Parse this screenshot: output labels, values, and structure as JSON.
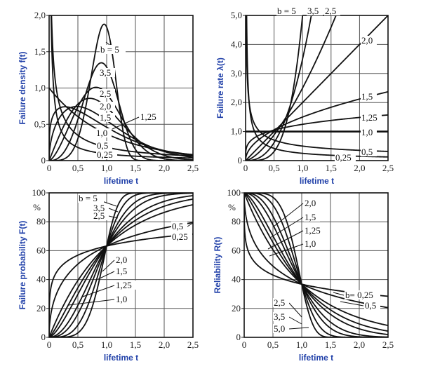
{
  "chart_data": [
    {
      "type": "line",
      "function": "weibull-density",
      "ylabel": "Failure density f(t)",
      "xlabel": "lifetime t",
      "xlim": [
        0,
        2.5
      ],
      "ylim": [
        0,
        2.0
      ],
      "xticks": [
        "0",
        "0,5",
        "1,0",
        "1,5",
        "2,0",
        "2,5"
      ],
      "yticks": [
        "0",
        "0,5",
        "1,0",
        "1,5",
        "2,0"
      ],
      "unit": "",
      "grid": true,
      "series": [
        {
          "b": 0.25,
          "label": "0,25"
        },
        {
          "b": 0.5,
          "label": "0,5"
        },
        {
          "b": 1.0,
          "label": "1,0"
        },
        {
          "b": 1.25,
          "label": "1,25"
        },
        {
          "b": 1.5,
          "label": "1,5"
        },
        {
          "b": 2.0,
          "label": "2,0"
        },
        {
          "b": 2.5,
          "label": "2,5"
        },
        {
          "b": 3.5,
          "label": "3,5"
        },
        {
          "b": 5,
          "label": "b = 5"
        }
      ]
    },
    {
      "type": "line",
      "function": "weibull-hazard",
      "ylabel": "Failure rate λ(t)",
      "xlabel": "lifetime t",
      "xlim": [
        0,
        2.5
      ],
      "ylim": [
        0,
        5.0
      ],
      "xticks": [
        "0",
        "0,5",
        "1,0",
        "1,5",
        "2,0",
        "2,5"
      ],
      "yticks": [
        "0",
        "1,0",
        "2,0",
        "3,0",
        "4,0",
        "5,0"
      ],
      "unit": "",
      "grid": true,
      "series": [
        {
          "b": 0.25,
          "label": "0,25"
        },
        {
          "b": 0.5,
          "label": "0,5"
        },
        {
          "b": 1.0,
          "label": "1,0"
        },
        {
          "b": 1.25,
          "label": "1,25"
        },
        {
          "b": 1.5,
          "label": "1,5"
        },
        {
          "b": 2.0,
          "label": "2,0"
        },
        {
          "b": 2.5,
          "label": "2,5"
        },
        {
          "b": 3.5,
          "label": "3,5"
        },
        {
          "b": 5,
          "label": "b = 5"
        }
      ]
    },
    {
      "type": "line",
      "function": "weibull-cdf-percent",
      "ylabel": "Failure probability F(t)",
      "xlabel": "lifetime t",
      "xlim": [
        0,
        2.5
      ],
      "ylim": [
        0,
        100
      ],
      "xticks": [
        "0",
        "0,5",
        "1,0",
        "1,5",
        "2,0",
        "2,5"
      ],
      "yticks": [
        "0",
        "20",
        "40",
        "60",
        "80",
        "100"
      ],
      "unit": "%",
      "grid": true,
      "series": [
        {
          "b": 0.25,
          "label": "0,25"
        },
        {
          "b": 0.5,
          "label": "0,5"
        },
        {
          "b": 1.0,
          "label": "1,0"
        },
        {
          "b": 1.25,
          "label": "1,25"
        },
        {
          "b": 1.5,
          "label": "1,5"
        },
        {
          "b": 2.0,
          "label": "2,0"
        },
        {
          "b": 2.5,
          "label": "2,5"
        },
        {
          "b": 3.5,
          "label": "3,5"
        },
        {
          "b": 5,
          "label": "b = 5"
        }
      ]
    },
    {
      "type": "line",
      "function": "weibull-reliability-percent",
      "ylabel": "Reliability R(t)",
      "xlabel": "lifetime t",
      "xlim": [
        0,
        2.5
      ],
      "ylim": [
        0,
        100
      ],
      "xticks": [
        "0",
        "0,5",
        "1,0",
        "1,5",
        "2,0",
        "2,5"
      ],
      "yticks": [
        "0",
        "20",
        "40",
        "60",
        "80",
        "100"
      ],
      "unit": "%",
      "grid": true,
      "series": [
        {
          "b": 0.25,
          "label": "b= 0,25"
        },
        {
          "b": 0.5,
          "label": "0,5"
        },
        {
          "b": 1.0,
          "label": "1,0"
        },
        {
          "b": 1.25,
          "label": "1,25"
        },
        {
          "b": 1.5,
          "label": "1,5"
        },
        {
          "b": 2.0,
          "label": "2,0"
        },
        {
          "b": 2.5,
          "label": "2,5"
        },
        {
          "b": 3.5,
          "label": "3,5"
        },
        {
          "b": 5,
          "label": "5,0"
        }
      ]
    }
  ]
}
